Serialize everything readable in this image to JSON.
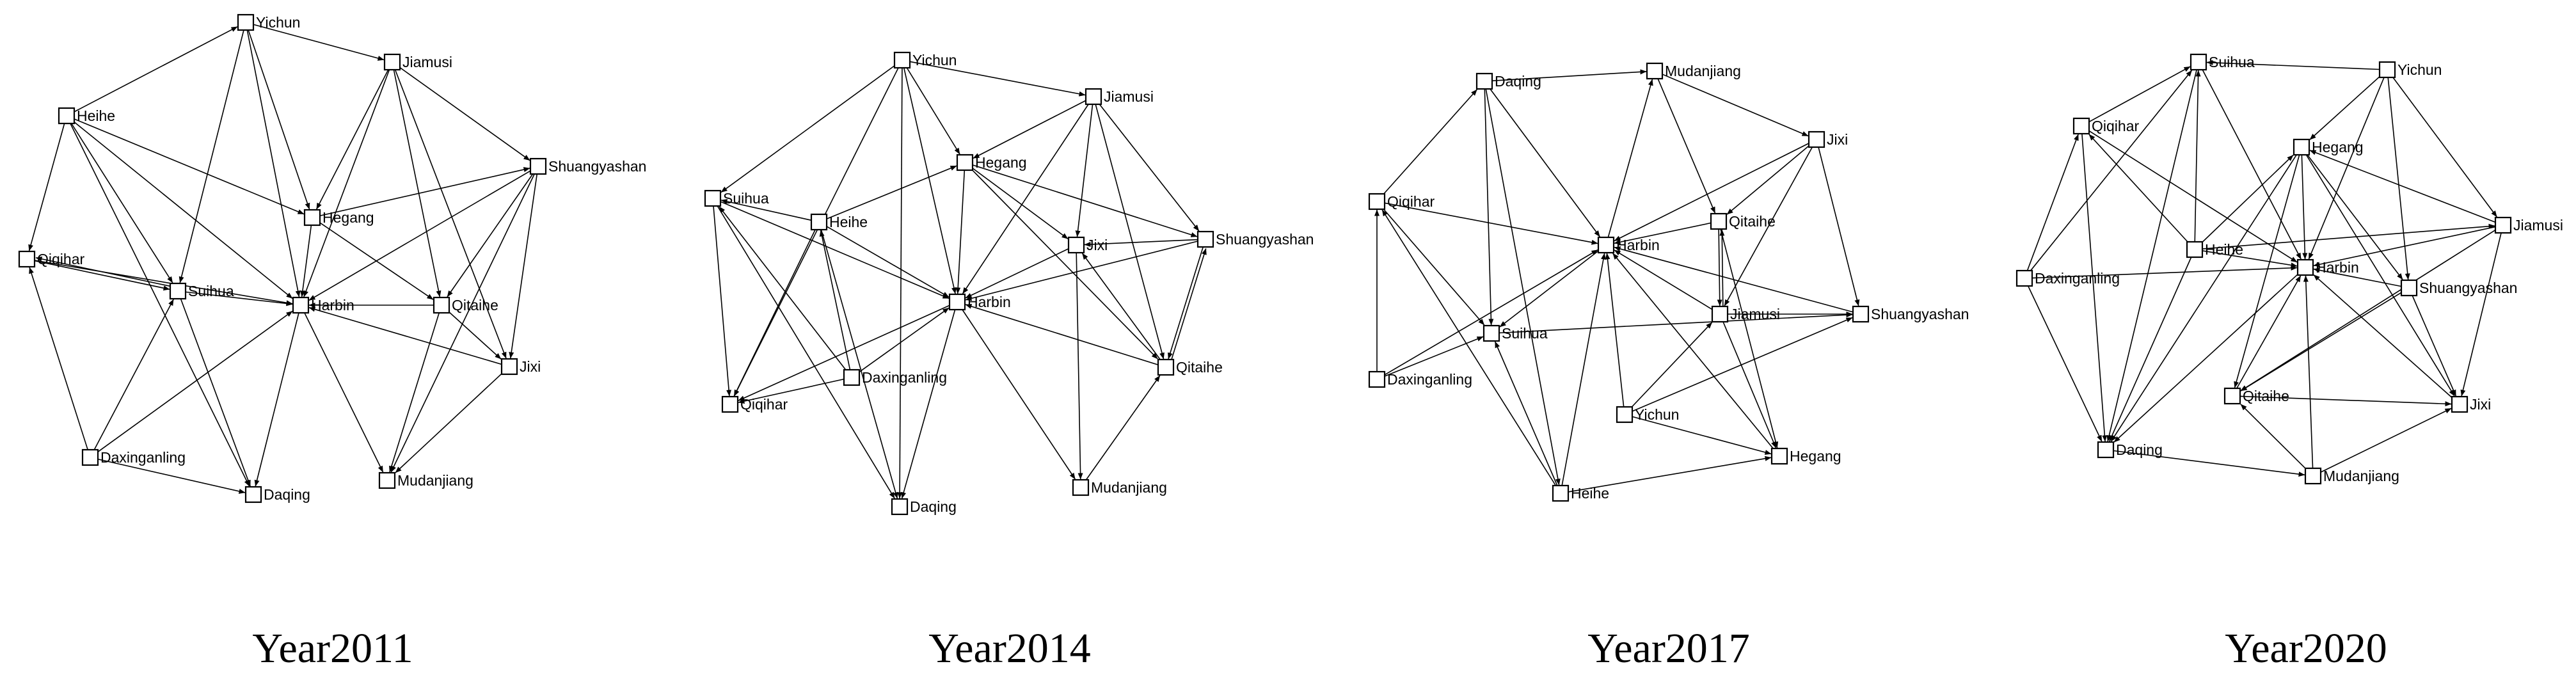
{
  "panels": [
    {
      "caption": "Year2011",
      "nodes": [
        {
          "id": "Yichun",
          "label": "Yichun"
        },
        {
          "id": "Jiamusi",
          "label": "Jiamusi"
        },
        {
          "id": "Heihe",
          "label": "Heihe"
        },
        {
          "id": "Shuangyashan",
          "label": "Shuangyashan"
        },
        {
          "id": "Hegang",
          "label": "Hegang"
        },
        {
          "id": "Qiqihar",
          "label": "Qiqihar"
        },
        {
          "id": "Suihua",
          "label": "Suihua"
        },
        {
          "id": "Harbin",
          "label": "Harbin"
        },
        {
          "id": "Qitaihe",
          "label": "Qitaihe"
        },
        {
          "id": "Jixi",
          "label": "Jixi"
        },
        {
          "id": "Daxinganling",
          "label": "Daxinganling"
        },
        {
          "id": "Daqing",
          "label": "Daqing"
        },
        {
          "id": "Mudanjiang",
          "label": "Mudanjiang"
        }
      ],
      "edges": [
        [
          "Heihe",
          "Yichun"
        ],
        [
          "Yichun",
          "Jiamusi"
        ],
        [
          "Yichun",
          "Hegang"
        ],
        [
          "Yichun",
          "Harbin"
        ],
        [
          "Yichun",
          "Suihua"
        ],
        [
          "Heihe",
          "Qiqihar"
        ],
        [
          "Heihe",
          "Hegang"
        ],
        [
          "Heihe",
          "Harbin"
        ],
        [
          "Heihe",
          "Suihua"
        ],
        [
          "Heihe",
          "Daqing"
        ],
        [
          "Jiamusi",
          "Hegang"
        ],
        [
          "Jiamusi",
          "Harbin"
        ],
        [
          "Jiamusi",
          "Qitaihe"
        ],
        [
          "Jiamusi",
          "Shuangyashan"
        ],
        [
          "Jiamusi",
          "Jixi"
        ],
        [
          "Hegang",
          "Shuangyashan"
        ],
        [
          "Hegang",
          "Harbin"
        ],
        [
          "Shuangyashan",
          "Harbin"
        ],
        [
          "Shuangyashan",
          "Qitaihe"
        ],
        [
          "Shuangyashan",
          "Mudanjiang"
        ],
        [
          "Shuangyashan",
          "Jixi"
        ],
        [
          "Qiqihar",
          "Suihua"
        ],
        [
          "Suihua",
          "Qiqihar"
        ],
        [
          "Suihua",
          "Harbin"
        ],
        [
          "Suihua",
          "Daqing"
        ],
        [
          "Qiqihar",
          "Harbin"
        ],
        [
          "Daxinganling",
          "Qiqihar"
        ],
        [
          "Daxinganling",
          "Suihua"
        ],
        [
          "Daxinganling",
          "Harbin"
        ],
        [
          "Daxinganling",
          "Daqing"
        ],
        [
          "Qitaihe",
          "Harbin"
        ],
        [
          "Jixi",
          "Harbin"
        ],
        [
          "Qitaihe",
          "Jixi"
        ],
        [
          "Harbin",
          "Daqing"
        ],
        [
          "Harbin",
          "Mudanjiang"
        ],
        [
          "Jixi",
          "Mudanjiang"
        ],
        [
          "Qitaihe",
          "Mudanjiang"
        ],
        [
          "Hegang",
          "Qitaihe"
        ]
      ]
    },
    {
      "caption": "Year2014",
      "nodes": [
        {
          "id": "Yichun",
          "label": "Yichun"
        },
        {
          "id": "Jiamusi",
          "label": "Jiamusi"
        },
        {
          "id": "Hegang",
          "label": "Hegang"
        },
        {
          "id": "Suihua",
          "label": "Suihua"
        },
        {
          "id": "Heihe",
          "label": "Heihe"
        },
        {
          "id": "Jixi",
          "label": "Jixi"
        },
        {
          "id": "Shuangyashan",
          "label": "Shuangyashan"
        },
        {
          "id": "Harbin",
          "label": "Harbin"
        },
        {
          "id": "Qitaihe",
          "label": "Qitaihe"
        },
        {
          "id": "Daxinganling",
          "label": "Daxinganling"
        },
        {
          "id": "Qiqihar",
          "label": "Qiqihar"
        },
        {
          "id": "Mudanjiang",
          "label": "Mudanjiang"
        },
        {
          "id": "Daqing",
          "label": "Daqing"
        }
      ],
      "edges": [
        [
          "Yichun",
          "Suihua"
        ],
        [
          "Yichun",
          "Jiamusi"
        ],
        [
          "Yichun",
          "Hegang"
        ],
        [
          "Yichun",
          "Harbin"
        ],
        [
          "Yichun",
          "Qiqihar"
        ],
        [
          "Yichun",
          "Daqing"
        ],
        [
          "Jiamusi",
          "Hegang"
        ],
        [
          "Jiamusi",
          "Harbin"
        ],
        [
          "Jiamusi",
          "Jixi"
        ],
        [
          "Jiamusi",
          "Shuangyashan"
        ],
        [
          "Jiamusi",
          "Qitaihe"
        ],
        [
          "Hegang",
          "Harbin"
        ],
        [
          "Hegang",
          "Shuangyashan"
        ],
        [
          "Hegang",
          "Jixi"
        ],
        [
          "Hegang",
          "Qitaihe"
        ],
        [
          "Heihe",
          "Hegang"
        ],
        [
          "Heihe",
          "Harbin"
        ],
        [
          "Heihe",
          "Qiqihar"
        ],
        [
          "Heihe",
          "Daqing"
        ],
        [
          "Heihe",
          "Suihua"
        ],
        [
          "Suihua",
          "Harbin"
        ],
        [
          "Suihua",
          "Qiqihar"
        ],
        [
          "Suihua",
          "Daqing"
        ],
        [
          "Daxinganling",
          "Suihua"
        ],
        [
          "Daxinganling",
          "Heihe"
        ],
        [
          "Daxinganling",
          "Harbin"
        ],
        [
          "Daxinganling",
          "Qiqihar"
        ],
        [
          "Jixi",
          "Harbin"
        ],
        [
          "Shuangyashan",
          "Jixi"
        ],
        [
          "Shuangyashan",
          "Harbin"
        ],
        [
          "Shuangyashan",
          "Qitaihe"
        ],
        [
          "Qitaihe",
          "Harbin"
        ],
        [
          "Qitaihe",
          "Jixi"
        ],
        [
          "Qitaihe",
          "Shuangyashan"
        ],
        [
          "Harbin",
          "Qiqihar"
        ],
        [
          "Harbin",
          "Daqing"
        ],
        [
          "Harbin",
          "Mudanjiang"
        ],
        [
          "Mudanjiang",
          "Qitaihe"
        ],
        [
          "Jixi",
          "Mudanjiang"
        ]
      ]
    },
    {
      "caption": "Year2017",
      "nodes": [
        {
          "id": "Daqing",
          "label": "Daqing"
        },
        {
          "id": "Mudanjiang",
          "label": "Mudanjiang"
        },
        {
          "id": "Jixi",
          "label": "Jixi"
        },
        {
          "id": "Qiqihar",
          "label": "Qiqihar"
        },
        {
          "id": "Qitaihe",
          "label": "Qitaihe"
        },
        {
          "id": "Harbin",
          "label": "Harbin"
        },
        {
          "id": "Jiamusi",
          "label": "Jiamusi"
        },
        {
          "id": "Shuangyashan",
          "label": "Shuangyashan"
        },
        {
          "id": "Suihua",
          "label": "Suihua"
        },
        {
          "id": "Daxinganling",
          "label": "Daxinganling"
        },
        {
          "id": "Yichun",
          "label": "Yichun"
        },
        {
          "id": "Hegang",
          "label": "Hegang"
        },
        {
          "id": "Heihe",
          "label": "Heihe"
        }
      ],
      "edges": [
        [
          "Daqing",
          "Mudanjiang"
        ],
        [
          "Qiqihar",
          "Daqing"
        ],
        [
          "Daqing",
          "Harbin"
        ],
        [
          "Daqing",
          "Suihua"
        ],
        [
          "Mudanjiang",
          "Jixi"
        ],
        [
          "Harbin",
          "Mudanjiang"
        ],
        [
          "Mudanjiang",
          "Qitaihe"
        ],
        [
          "Jixi",
          "Harbin"
        ],
        [
          "Jixi",
          "Qitaihe"
        ],
        [
          "Jixi",
          "Shuangyashan"
        ],
        [
          "Jixi",
          "Jiamusi"
        ],
        [
          "Qiqihar",
          "Harbin"
        ],
        [
          "Qiqihar",
          "Suihua"
        ],
        [
          "Daxinganling",
          "Qiqihar"
        ],
        [
          "Heihe",
          "Qiqihar"
        ],
        [
          "Qitaihe",
          "Harbin"
        ],
        [
          "Qitaihe",
          "Jiamusi"
        ],
        [
          "Jiamusi",
          "Qitaihe"
        ],
        [
          "Qitaihe",
          "Hegang"
        ],
        [
          "Jiamusi",
          "Harbin"
        ],
        [
          "Jiamusi",
          "Shuangyashan"
        ],
        [
          "Jiamusi",
          "Hegang"
        ],
        [
          "Shuangyashan",
          "Harbin"
        ],
        [
          "Yichun",
          "Shuangyashan"
        ],
        [
          "Hegang",
          "Harbin"
        ],
        [
          "Harbin",
          "Suihua"
        ],
        [
          "Daxinganling",
          "Suihua"
        ],
        [
          "Daxinganling",
          "Harbin"
        ],
        [
          "Yichun",
          "Harbin"
        ],
        [
          "Yichun",
          "Hegang"
        ],
        [
          "Yichun",
          "Jiamusi"
        ],
        [
          "Heihe",
          "Harbin"
        ],
        [
          "Heihe",
          "Suihua"
        ],
        [
          "Heihe",
          "Hegang"
        ],
        [
          "Daqing",
          "Heihe"
        ],
        [
          "Suihua",
          "Shuangyashan"
        ]
      ]
    },
    {
      "caption": "Year2020",
      "nodes": [
        {
          "id": "Suihua",
          "label": "Suihua"
        },
        {
          "id": "Yichun",
          "label": "Yichun"
        },
        {
          "id": "Qiqihar",
          "label": "Qiqihar"
        },
        {
          "id": "Hegang",
          "label": "Hegang"
        },
        {
          "id": "Jiamusi",
          "label": "Jiamusi"
        },
        {
          "id": "Heihe",
          "label": "Heihe"
        },
        {
          "id": "Daxinganling",
          "label": "Daxinganling"
        },
        {
          "id": "Harbin",
          "label": "Harbin"
        },
        {
          "id": "Shuangyashan",
          "label": "Shuangyashan"
        },
        {
          "id": "Qitaihe",
          "label": "Qitaihe"
        },
        {
          "id": "Jixi",
          "label": "Jixi"
        },
        {
          "id": "Daqing",
          "label": "Daqing"
        },
        {
          "id": "Mudanjiang",
          "label": "Mudanjiang"
        }
      ],
      "edges": [
        [
          "Yichun",
          "Suihua"
        ],
        [
          "Qiqihar",
          "Suihua"
        ],
        [
          "Heihe",
          "Suihua"
        ],
        [
          "Daxinganling",
          "Suihua"
        ],
        [
          "Suihua",
          "Harbin"
        ],
        [
          "Suihua",
          "Daqing"
        ],
        [
          "Yichun",
          "Hegang"
        ],
        [
          "Yichun",
          "Harbin"
        ],
        [
          "Yichun",
          "Jiamusi"
        ],
        [
          "Yichun",
          "Shuangyashan"
        ],
        [
          "Daxinganling",
          "Qiqihar"
        ],
        [
          "Qiqihar",
          "Harbin"
        ],
        [
          "Qiqihar",
          "Daqing"
        ],
        [
          "Heihe",
          "Qiqihar"
        ],
        [
          "Hegang",
          "Harbin"
        ],
        [
          "Hegang",
          "Shuangyashan"
        ],
        [
          "Hegang",
          "Jixi"
        ],
        [
          "Hegang",
          "Qitaihe"
        ],
        [
          "Hegang",
          "Daqing"
        ],
        [
          "Jiamusi",
          "Harbin"
        ],
        [
          "Jiamusi",
          "Qitaihe"
        ],
        [
          "Jiamusi",
          "Jixi"
        ],
        [
          "Jiamusi",
          "Hegang"
        ],
        [
          "Heihe",
          "Harbin"
        ],
        [
          "Heihe",
          "Daqing"
        ],
        [
          "Heihe",
          "Hegang"
        ],
        [
          "Heihe",
          "Jiamusi"
        ],
        [
          "Daxinganling",
          "Harbin"
        ],
        [
          "Daxinganling",
          "Daqing"
        ],
        [
          "Shuangyashan",
          "Harbin"
        ],
        [
          "Shuangyashan",
          "Qitaihe"
        ],
        [
          "Shuangyashan",
          "Jixi"
        ],
        [
          "Qitaihe",
          "Harbin"
        ],
        [
          "Qitaihe",
          "Jixi"
        ],
        [
          "Jixi",
          "Harbin"
        ],
        [
          "Harbin",
          "Daqing"
        ],
        [
          "Mudanjiang",
          "Harbin"
        ],
        [
          "Mudanjiang",
          "Qitaihe"
        ],
        [
          "Mudanjiang",
          "Jixi"
        ],
        [
          "Daqing",
          "Mudanjiang"
        ]
      ]
    }
  ]
}
